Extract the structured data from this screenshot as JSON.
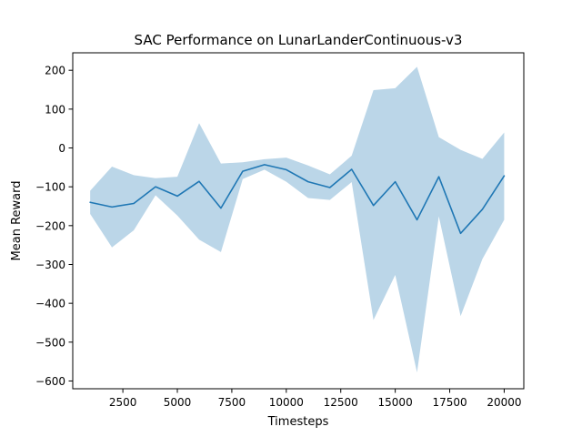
{
  "chart_data": {
    "type": "line",
    "title": "SAC Performance on LunarLanderContinuous-v3",
    "xlabel": "Timesteps",
    "ylabel": "Mean Reward",
    "xlim": [
      200,
      20900
    ],
    "ylim": [
      -620,
      245
    ],
    "xticks": [
      2500,
      5000,
      7500,
      10000,
      12500,
      15000,
      17500,
      20000
    ],
    "yticks": [
      -600,
      -500,
      -400,
      -300,
      -200,
      -100,
      0,
      100,
      200
    ],
    "grid": false,
    "legend": "none",
    "x": [
      1000,
      2000,
      3000,
      4000,
      5000,
      6000,
      7000,
      8000,
      9000,
      10000,
      11000,
      12000,
      13000,
      14000,
      15000,
      16000,
      17000,
      18000,
      19000,
      20000
    ],
    "series": [
      {
        "values": [
          -140,
          -152,
          -143,
          -100,
          -124,
          -86,
          -155,
          -60,
          -43,
          -56,
          -87,
          -102,
          -55,
          -148,
          -87,
          -185,
          -74,
          -220,
          -158,
          -72
        ],
        "upper": [
          -110,
          -48,
          -70,
          -78,
          -74,
          64,
          -40,
          -37,
          -29,
          -25,
          -45,
          -68,
          -20,
          149,
          154,
          209,
          28,
          -5,
          -28,
          40
        ],
        "lower": [
          -170,
          -256,
          -212,
          -122,
          -174,
          -236,
          -268,
          -80,
          -56,
          -87,
          -129,
          -134,
          -88,
          -443,
          -327,
          -578,
          -176,
          -433,
          -286,
          -185
        ],
        "color": "#1f77b4",
        "band_color": "#1f77b4",
        "band_opacity": 0.3
      }
    ]
  }
}
